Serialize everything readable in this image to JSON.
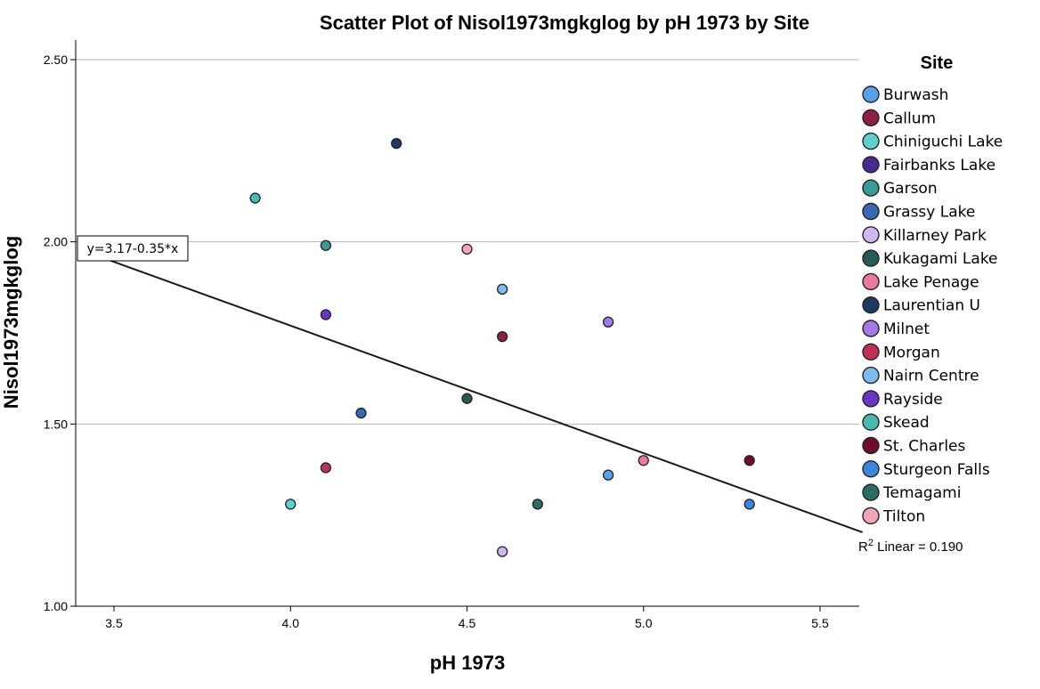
{
  "chart_data": {
    "type": "scatter",
    "title": "Scatter Plot of Nisol1973mgkglog by pH 1973 by Site",
    "xlabel": "pH 1973",
    "ylabel": "Nisol1973mgkglog",
    "xlim": [
      3.4,
      5.62
    ],
    "ylim": [
      1.0,
      2.56
    ],
    "x_ticks": [
      3.5,
      4.0,
      4.5,
      5.0,
      5.5
    ],
    "x_tick_labels": [
      "3.5",
      "4.0",
      "4.5",
      "5.0",
      "5.5"
    ],
    "y_ticks": [
      1.0,
      1.5,
      2.0,
      2.5
    ],
    "y_tick_labels": [
      "1.00",
      "1.50",
      "2.00",
      "2.50"
    ],
    "grid": "horizontal",
    "legend": {
      "title": "Site",
      "position": "right",
      "entries": [
        {
          "name": "Burwash",
          "color": "#5aa0e6"
        },
        {
          "name": "Callum",
          "color": "#8c1e48"
        },
        {
          "name": "Chiniguchi Lake",
          "color": "#5ed0d0"
        },
        {
          "name": "Fairbanks Lake",
          "color": "#4a2a8c"
        },
        {
          "name": "Garson",
          "color": "#3c9a96"
        },
        {
          "name": "Grassy Lake",
          "color": "#3a68b4"
        },
        {
          "name": "Killarney Park",
          "color": "#cdb8f0"
        },
        {
          "name": "Kukagami Lake",
          "color": "#255a56"
        },
        {
          "name": "Lake Penage",
          "color": "#e87a9c"
        },
        {
          "name": "Laurentian U",
          "color": "#1c3a62"
        },
        {
          "name": "Milnet",
          "color": "#a27ae8"
        },
        {
          "name": "Morgan",
          "color": "#be3258"
        },
        {
          "name": "Nairn Centre",
          "color": "#7cbcee"
        },
        {
          "name": "Rayside",
          "color": "#6a36c4"
        },
        {
          "name": "Skead",
          "color": "#4cb8b0"
        },
        {
          "name": "St. Charles",
          "color": "#6e0e2e"
        },
        {
          "name": "Sturgeon Falls",
          "color": "#3c86dc"
        },
        {
          "name": "Temagami",
          "color": "#2e6c66"
        },
        {
          "name": "Tilton",
          "color": "#f0a6b8"
        }
      ]
    },
    "points": [
      {
        "site": "Skead",
        "x": 3.9,
        "y": 2.12
      },
      {
        "site": "Laurentian U",
        "x": 4.3,
        "y": 2.27
      },
      {
        "site": "Garson",
        "x": 4.1,
        "y": 1.99
      },
      {
        "site": "Tilton",
        "x": 4.5,
        "y": 1.98
      },
      {
        "site": "Nairn Centre",
        "x": 4.6,
        "y": 1.87
      },
      {
        "site": "Rayside",
        "x": 4.1,
        "y": 1.8
      },
      {
        "site": "Milnet",
        "x": 4.9,
        "y": 1.78
      },
      {
        "site": "Callum",
        "x": 4.6,
        "y": 1.74
      },
      {
        "site": "Grassy Lake",
        "x": 4.2,
        "y": 1.53
      },
      {
        "site": "Kukagami Lake",
        "x": 4.5,
        "y": 1.57
      },
      {
        "site": "Morgan",
        "x": 4.1,
        "y": 1.38
      },
      {
        "site": "Lake Penage",
        "x": 5.0,
        "y": 1.4
      },
      {
        "site": "St. Charles",
        "x": 5.3,
        "y": 1.4
      },
      {
        "site": "Burwash",
        "x": 4.9,
        "y": 1.36
      },
      {
        "site": "Chiniguchi Lake",
        "x": 4.0,
        "y": 1.28
      },
      {
        "site": "Temagami",
        "x": 4.7,
        "y": 1.28
      },
      {
        "site": "Sturgeon Falls",
        "x": 5.3,
        "y": 1.28
      },
      {
        "site": "Killarney Park",
        "x": 4.6,
        "y": 1.15
      }
    ],
    "fit_line": {
      "equation_label": "y=3.17-0.35*x",
      "intercept": 3.17,
      "slope": -0.35,
      "r2_prefix": "R",
      "r2_superscript": "2",
      "r2_text": " Linear = 0.190"
    }
  }
}
